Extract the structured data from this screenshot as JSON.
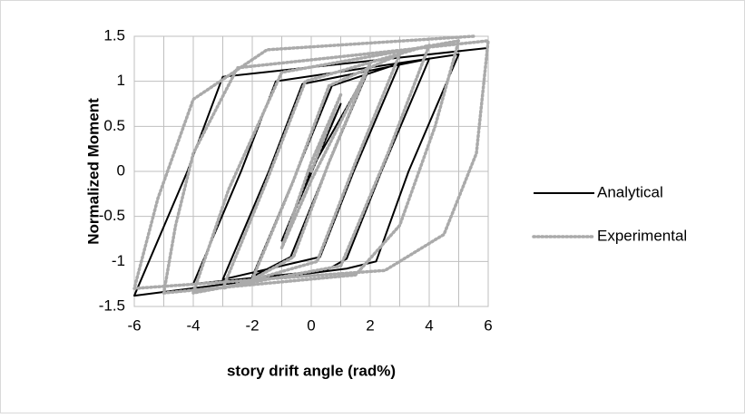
{
  "chart_data": {
    "type": "line",
    "xlabel": "story drift angle (rad%)",
    "ylabel": "Normalized Moment",
    "xlim": [
      -6,
      6
    ],
    "ylim": [
      -1.5,
      1.5
    ],
    "xticks": [
      -6,
      -4,
      -2,
      0,
      2,
      4,
      6
    ],
    "xminorticks": [
      -5,
      -3,
      -1,
      1,
      3,
      5
    ],
    "yticks": [
      -1.5,
      -1,
      -0.5,
      0,
      0.5,
      1,
      1.5
    ],
    "grid": true,
    "legend": "right",
    "series": [
      {
        "name": "Analytical",
        "color": "#000000",
        "style": "solid",
        "x": [
          0,
          1,
          0,
          -1,
          0,
          2,
          0.48,
          -0.7,
          -2,
          -0.48,
          0.7,
          3,
          1.44,
          0.3,
          -3,
          -1.44,
          -0.3,
          4,
          2.38,
          1.2,
          0.5,
          -4,
          -2.38,
          -1.2,
          5,
          3.3,
          2.2,
          1.2,
          -6,
          -4.2,
          -3,
          6
        ],
        "values": [
          0,
          0.75,
          -0.02,
          -0.77,
          0.02,
          1.17,
          0,
          -0.95,
          -1.17,
          0,
          0.95,
          1.2,
          0,
          -0.95,
          -1.2,
          0,
          0.97,
          1.25,
          0,
          -0.97,
          -1.1,
          -1.25,
          0,
          1.0,
          1.3,
          0,
          -1.0,
          -1.08,
          -1.38,
          0,
          1.05,
          1.37
        ]
      },
      {
        "name": "Experimental",
        "color": "#aaaaaa",
        "style": "dotted",
        "x": [
          0,
          1,
          0,
          -1,
          0,
          2,
          0.6,
          -0.6,
          -2,
          -0.6,
          0.6,
          3,
          1.5,
          0.2,
          -3,
          -1.5,
          -0.2,
          4,
          2.6,
          1,
          -4,
          -2.8,
          -1,
          5,
          4.2,
          3,
          1.5,
          -5,
          -4.6,
          -4,
          -2.5,
          6,
          5.6,
          4.5,
          2.5,
          -6,
          -5.2,
          -4,
          -1.5,
          5.5
        ],
        "values": [
          0,
          0.85,
          0.1,
          -0.85,
          -0.1,
          1.2,
          0.1,
          -0.95,
          -1.2,
          -0.1,
          0.95,
          1.3,
          0.1,
          -1.0,
          -1.3,
          -0.1,
          1.0,
          1.4,
          0.2,
          -1.05,
          -1.35,
          -0.2,
          1.1,
          1.45,
          0.5,
          -0.6,
          -1.15,
          -1.35,
          -0.6,
          0.2,
          1.15,
          1.45,
          0.2,
          -0.7,
          -1.1,
          -1.3,
          -0.3,
          0.8,
          1.35,
          1.5
        ]
      }
    ]
  }
}
